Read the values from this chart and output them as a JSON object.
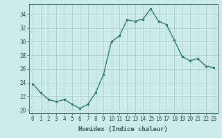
{
  "x": [
    0,
    1,
    2,
    3,
    4,
    5,
    6,
    7,
    8,
    9,
    10,
    11,
    12,
    13,
    14,
    15,
    16,
    17,
    18,
    19,
    20,
    21,
    22,
    23
  ],
  "y": [
    23.8,
    22.5,
    21.5,
    21.2,
    21.5,
    20.8,
    20.2,
    20.8,
    22.5,
    25.2,
    30.0,
    30.8,
    33.2,
    33.0,
    33.3,
    34.8,
    33.0,
    32.5,
    30.2,
    27.8,
    27.2,
    27.5,
    26.4,
    26.2
  ],
  "line_color": "#2e7d6e",
  "marker": ".",
  "marker_size": 3,
  "bg_color": "#cceaea",
  "grid_color": "#aacccc",
  "xlabel": "Humidex (Indice chaleur)",
  "ylim": [
    19.5,
    35.5
  ],
  "xlim": [
    -0.5,
    23.5
  ],
  "yticks": [
    20,
    22,
    24,
    26,
    28,
    30,
    32,
    34
  ],
  "xticks": [
    0,
    1,
    2,
    3,
    4,
    5,
    6,
    7,
    8,
    9,
    10,
    11,
    12,
    13,
    14,
    15,
    16,
    17,
    18,
    19,
    20,
    21,
    22,
    23
  ],
  "xlabel_fontsize": 6.5,
  "tick_fontsize": 5.5,
  "line_width": 1.0,
  "tick_color": "#2e5a5a",
  "spine_color": "#4a8080"
}
